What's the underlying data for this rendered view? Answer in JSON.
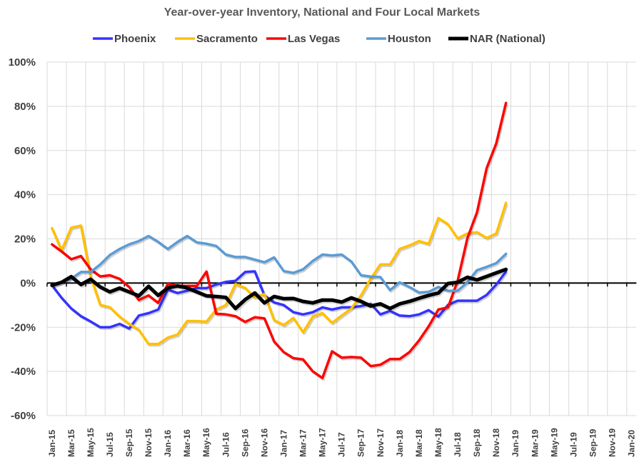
{
  "chart_data": {
    "type": "line",
    "title": "Year-over-year Inventory, National and Four Local Markets",
    "xlabel": "",
    "ylabel": "",
    "x_categories_start": "Jan-15",
    "x_categories_end": "Jan-20",
    "x_tick_labels": [
      "Jan-15",
      "Mar-15",
      "May-15",
      "Jul-15",
      "Sep-15",
      "Nov-15",
      "Jan-16",
      "Mar-16",
      "May-16",
      "Jul-16",
      "Sep-16",
      "Nov-16",
      "Jan-17",
      "Mar-17",
      "May-17",
      "Jul-17",
      "Sep-17",
      "Nov-17",
      "Jan-18",
      "Mar-18",
      "May-18",
      "Jul-18",
      "Sep-18",
      "Nov-18",
      "Jan-19",
      "Mar-19",
      "May-19",
      "Jul-19",
      "Sep-19",
      "Nov-19",
      "Jan-20"
    ],
    "y_tick_labels": [
      "100%",
      "80%",
      "60%",
      "40%",
      "20%",
      "0%",
      "-20%",
      "-40%",
      "-60%"
    ],
    "ylim": [
      -60,
      100
    ],
    "y_unit": "%",
    "grid": true,
    "legend_position": "top",
    "series": [
      {
        "name": "Phoenix",
        "color": "#3333ff",
        "values": [
          -1,
          -6.7,
          -11.5,
          -15,
          -17.4,
          -20,
          -20,
          -18.5,
          -20.6,
          -14.7,
          -13.6,
          -12,
          -3,
          -4.5,
          -3.5,
          -2.3,
          -2.3,
          -0.7,
          0.5,
          1,
          5,
          5.3,
          -5.6,
          -8.8,
          -10,
          -13.2,
          -14.2,
          -13.2,
          -11,
          -12,
          -11,
          -11,
          -10.4,
          -9.4,
          -14.2,
          -12.6,
          -14.7,
          -15,
          -14.2,
          -12.3,
          -15.2,
          -9.9,
          -8,
          -8,
          -8,
          -5.4,
          -0.7,
          5.2
        ]
      },
      {
        "name": "Sacramento",
        "color": "#ffc000",
        "values": [
          24.8,
          14.8,
          25,
          26,
          3,
          -9.9,
          -11,
          -15.2,
          -18.5,
          -21.2,
          -27.6,
          -27.6,
          -24.7,
          -23.3,
          -17.2,
          -17.2,
          -17.5,
          -12,
          -10,
          -0.5,
          -2.2,
          -6.5,
          -5,
          -16.8,
          -19,
          -15.8,
          -22.3,
          -15.2,
          -13.6,
          -18,
          -14.7,
          -11.5,
          -5.6,
          2,
          8.4,
          8.4,
          15.4,
          17,
          19,
          17.7,
          29.4,
          26.6,
          20.2,
          22.4,
          23,
          20.4,
          22.4,
          36.3
        ]
      },
      {
        "name": "Las Vegas",
        "color": "#ff0000",
        "values": [
          17.5,
          14.3,
          10.8,
          12.2,
          6.2,
          3,
          3.5,
          1.9,
          -1.8,
          -7.7,
          -5.6,
          -9,
          -0.4,
          -1.3,
          -1.3,
          -1.3,
          5.2,
          -13.9,
          -14.2,
          -15,
          -17.6,
          -15.5,
          -16,
          -26.5,
          -31.3,
          -34,
          -34.6,
          -40,
          -43,
          -30.9,
          -33.8,
          -33.5,
          -33.8,
          -37.6,
          -37,
          -34.4,
          -34.4,
          -31.3,
          -26,
          -19.6,
          -12,
          -11,
          1,
          20.3,
          32,
          52,
          63.2,
          81.5
        ]
      },
      {
        "name": "Houston",
        "color": "#5b9bd5",
        "values": [
          -1.3,
          0.3,
          2,
          5,
          5,
          8.4,
          12.7,
          15.4,
          17.5,
          19,
          21.3,
          18.6,
          15.4,
          18.6,
          21.3,
          18.4,
          17.8,
          16.8,
          12.9,
          11.8,
          11.8,
          10.6,
          9.4,
          11.6,
          5.4,
          4.6,
          6.2,
          10,
          12.9,
          12.5,
          12.9,
          9.7,
          3.5,
          2.9,
          2.7,
          -3.2,
          0.3,
          -1.8,
          -4.3,
          -4,
          -1.8,
          -3.5,
          -3.5,
          0.3,
          5.8,
          7.3,
          9,
          13.2
        ]
      },
      {
        "name": "NAR (National)",
        "color": "#000000",
        "values": [
          -1,
          0.3,
          2.9,
          -0.7,
          1.7,
          -1.8,
          -4,
          -2.3,
          -4,
          -5.8,
          -1.5,
          -5.6,
          -2.2,
          -1.3,
          -2.2,
          -4,
          -5.8,
          -6.1,
          -6.5,
          -11.5,
          -7.5,
          -4.5,
          -9,
          -6.1,
          -7.1,
          -7,
          -8.3,
          -9,
          -7.7,
          -7.7,
          -8.6,
          -6.7,
          -8.3,
          -10.4,
          -9.4,
          -11.5,
          -9.4,
          -8.3,
          -6.9,
          -5.6,
          -4.5,
          -0.2,
          0.3,
          2.6,
          1.4,
          3,
          4.6,
          6.2
        ]
      }
    ]
  }
}
